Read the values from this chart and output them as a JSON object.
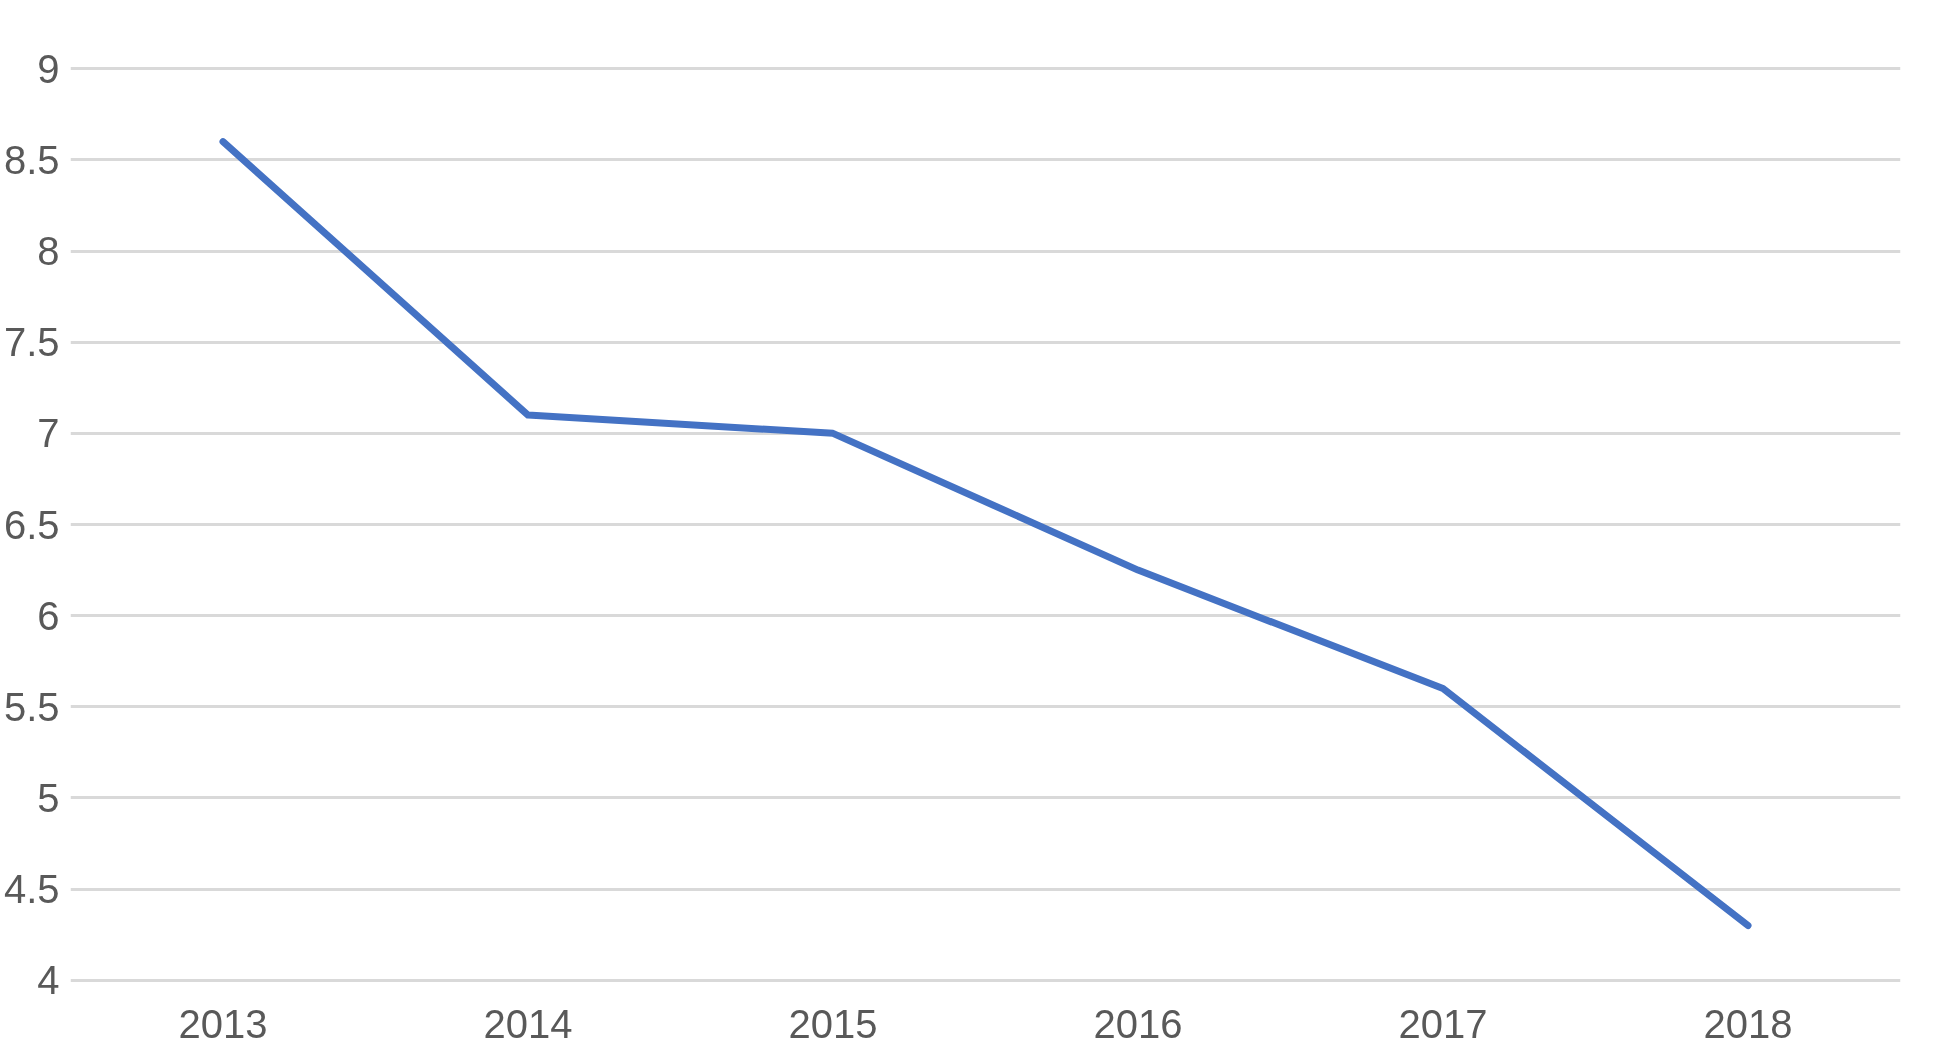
{
  "chart_data": {
    "type": "line",
    "categories": [
      "2013",
      "2014",
      "2015",
      "2016",
      "2017",
      "2018"
    ],
    "series": [
      {
        "color": "#4472c4",
        "values": [
          8.6,
          7.1,
          7.0,
          6.25,
          5.6,
          4.3
        ]
      }
    ],
    "ylim": [
      4,
      9
    ],
    "yticks": [
      4,
      4.5,
      5,
      5.5,
      6,
      6.5,
      7,
      7.5,
      8,
      8.5,
      9
    ],
    "grid": "y",
    "marker": "none",
    "line_style": "solid"
  }
}
